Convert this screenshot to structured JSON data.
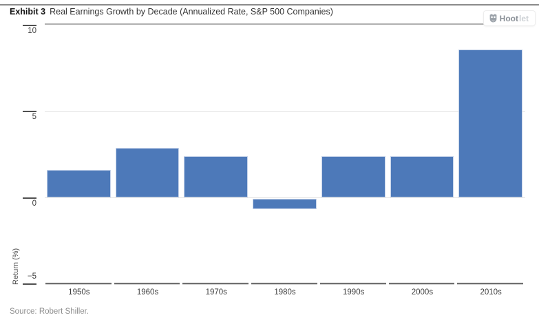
{
  "header": {
    "exhibit_label": "Exhibit 3",
    "title": "Real Earnings Growth by Decade (Annualized Rate, S&P 500 Companies)"
  },
  "hootlet_badge": {
    "brand_bold": "Hoot",
    "brand_light": "let"
  },
  "chart_data": {
    "type": "bar",
    "title": "Real Earnings Growth by Decade (Annualized Rate, S&P 500 Companies)",
    "categories": [
      "1950s",
      "1960s",
      "1970s",
      "1980s",
      "1990s",
      "2000s",
      "2010s"
    ],
    "values": [
      1.6,
      2.9,
      2.4,
      -0.6,
      2.4,
      2.4,
      8.6
    ],
    "xlabel": "",
    "ylabel": "Return (%)",
    "ylim": [
      -5,
      10
    ],
    "yticks": [
      {
        "label": "10",
        "value": 10
      },
      {
        "label": "5",
        "value": 5
      },
      {
        "label": "0",
        "value": 0
      },
      {
        "label": "−5",
        "value": -5
      }
    ],
    "grid": "horizontal gridlines at 0 and 5 only",
    "legend": "none",
    "bar_color": "#4d79b9",
    "bar_border_color": "#c7d4ea"
  },
  "footer": {
    "source": "Source: Robert Shiller."
  }
}
